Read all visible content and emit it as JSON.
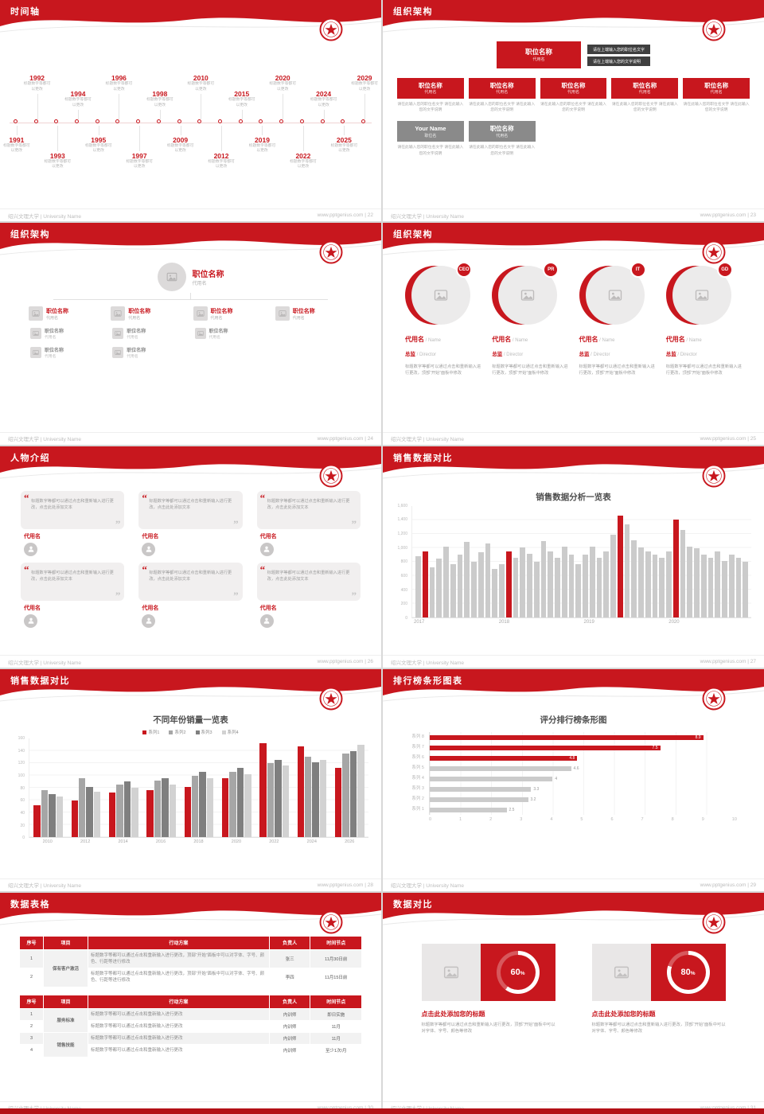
{
  "meta": {
    "university": "绍兴文理大学 | University Name",
    "site": "www.pptgenius.com",
    "sep": " | ",
    "slash": " / ",
    "accent": "#c8171e"
  },
  "slides": {
    "s22": {
      "title": "时间轴",
      "page": "22",
      "cap1": "标题数字等都可",
      "cap2": "以更改",
      "items": [
        {
          "year": "1991",
          "pos": "bottom near"
        },
        {
          "year": "1992",
          "pos": "top far"
        },
        {
          "year": "1993",
          "pos": "bottom far"
        },
        {
          "year": "1994",
          "pos": "top near"
        },
        {
          "year": "1995",
          "pos": "bottom near"
        },
        {
          "year": "1996",
          "pos": "top far"
        },
        {
          "year": "1997",
          "pos": "bottom far"
        },
        {
          "year": "1998",
          "pos": "top near"
        },
        {
          "year": "2009",
          "pos": "bottom near"
        },
        {
          "year": "2010",
          "pos": "top far"
        },
        {
          "year": "2012",
          "pos": "bottom far"
        },
        {
          "year": "2015",
          "pos": "top near"
        },
        {
          "year": "2019",
          "pos": "bottom near"
        },
        {
          "year": "2020",
          "pos": "top far"
        },
        {
          "year": "2022",
          "pos": "bottom far"
        },
        {
          "year": "2024",
          "pos": "top near"
        },
        {
          "year": "2025",
          "pos": "bottom near"
        },
        {
          "year": "2029",
          "pos": "top far"
        }
      ]
    },
    "s23": {
      "title": "组织架构",
      "page": "23",
      "box_title": "职位名称",
      "box_sub": "代用名",
      "note1": "请在上端输入您的职位名文字",
      "note2": "请在上端输入您的文字说明",
      "cell_note": "请在此输入您的职位名文字 请在此输入您的文字说明",
      "mid": [
        {
          "title": "职位名称",
          "sub": "代用名"
        },
        {
          "title": "职位名称",
          "sub": "代用名"
        },
        {
          "title": "职位名称",
          "sub": "代用名"
        },
        {
          "title": "职位名称",
          "sub": "代用名"
        },
        {
          "title": "职位名称",
          "sub": "代用名"
        }
      ],
      "bottom": [
        {
          "title": "Your Name",
          "sub": "职位名"
        },
        {
          "title": "职位名称",
          "sub": "代用名"
        }
      ]
    },
    "s24": {
      "title": "组织架构",
      "page": "24",
      "root": {
        "title": "职位名称",
        "sub": "代用名"
      },
      "branches": [
        {
          "title": "职位名称",
          "sub": "代用名",
          "subs": [
            {
              "title": "职位名称",
              "sub": "代用名"
            },
            {
              "title": "职位名称",
              "sub": "代用名"
            }
          ]
        },
        {
          "title": "职位名称",
          "sub": "代用名",
          "subs": [
            {
              "title": "职位名称",
              "sub": "代用名"
            },
            {
              "title": "职位名称",
              "sub": "代用名"
            }
          ]
        },
        {
          "title": "职位名称",
          "sub": "代用名",
          "subs": [
            {
              "title": "职位名称",
              "sub": "代用名"
            }
          ]
        },
        {
          "title": "职位名称",
          "sub": "代用名",
          "subs": []
        }
      ]
    },
    "s25": {
      "title": "组织架构",
      "page": "25",
      "name": "代用名",
      "name_en": "Name",
      "role": "总监",
      "role_en": "Director",
      "desc": "标题数字等都可以通过点击和重新输入进行更改，顶部“开始”面板中修改",
      "members": [
        {
          "badge": "CEO"
        },
        {
          "badge": "PR"
        },
        {
          "badge": "IT"
        },
        {
          "badge": "GD"
        }
      ]
    },
    "s26": {
      "title": "人物介绍",
      "page": "26",
      "quote": "标题数字等都可以通过点击和重新输入进行更改，点击此处添加文本",
      "cards": [
        {
          "name": "代用名"
        },
        {
          "name": "代用名"
        },
        {
          "name": "代用名"
        },
        {
          "name": "代用名"
        },
        {
          "name": "代用名"
        },
        {
          "name": "代用名"
        }
      ]
    },
    "s27": {
      "title": "销售数据对比",
      "page": "27"
    },
    "s28": {
      "title": "销售数据对比",
      "page": "28"
    },
    "s29": {
      "title": "排行榜条形图表",
      "page": "29"
    },
    "s30": {
      "title": "数据表格",
      "page": "30",
      "headers": [
        "序号",
        "项目",
        "行动方案",
        "负责人",
        "时间节点"
      ],
      "a": [
        {
          "no": "1",
          "item": "保有客户激活",
          "plan": "标题数字等都可以通过点击和重新输入进行更改，顶部“开始”面板中可以对字体、字号、颜色、行距等进行修改",
          "owner": "张三",
          "time": "11月30日前"
        },
        {
          "no": "2",
          "plan": "标题数字等都可以通过点击和重新输入进行更改，顶部“开始”面板中可以对字体、字号、颜色、行距等进行修改",
          "owner": "李四",
          "time": "11月15日前"
        }
      ],
      "b": [
        {
          "no": "1",
          "item": "服务标准",
          "plan": "标题数字等都可以通过点击和重新输入进行更改",
          "owner": "内训师",
          "time": "即日实施"
        },
        {
          "no": "2",
          "plan": "标题数字等都可以通过点击和重新输入进行更改",
          "owner": "内训师",
          "time": "11月"
        },
        {
          "no": "3",
          "item": "销售技能",
          "plan": "标题数字等都可以通过点击和重新输入进行更改",
          "owner": "内训师",
          "time": "11月"
        },
        {
          "no": "4",
          "plan": "标题数字等都可以通过点击和重新输入进行更改",
          "owner": "内训师",
          "time": "至少1次/月"
        }
      ]
    },
    "s31": {
      "title": "数据对比",
      "page": "31",
      "card_title": "点击此处添加您的标题",
      "card_desc": "标题数字等都可以通过点击和重新输入进行更改，顶部“开始”面板中可以对字体、字号、颜色等修改",
      "cards": [
        {
          "pct": 60
        },
        {
          "pct": 80
        }
      ]
    }
  },
  "chart_data": [
    {
      "id": "monthly-sales",
      "type": "bar",
      "title": "销售数据分析一览表",
      "xlabel": "",
      "ylabel": "",
      "categories": [
        "2017",
        "2018",
        "2019",
        "2020"
      ],
      "values": [
        880,
        950,
        720,
        840,
        1010,
        760,
        900,
        1080,
        800,
        940,
        1060,
        700,
        760,
        950,
        860,
        1000,
        910,
        800,
        1090,
        950,
        860,
        1010,
        900,
        760,
        900,
        1010,
        860,
        950,
        1190,
        1460,
        1340,
        1110,
        1000,
        950,
        900,
        860,
        950,
        1400,
        1260,
        1010,
        990,
        900,
        860,
        950,
        810,
        900,
        860,
        800
      ],
      "highlight_indices": [
        1,
        13,
        29,
        37
      ],
      "highlight_color": "#c8171e",
      "bar_color": "#c9c9c9",
      "ylim": [
        0,
        1600
      ],
      "yticks": [
        0,
        200,
        400,
        600,
        800,
        1000,
        1200,
        1400,
        1600
      ],
      "grid": true,
      "legend_position": "none"
    },
    {
      "id": "yearly-sales",
      "type": "bar",
      "title": "不同年份销量一览表",
      "categories": [
        "2010",
        "2012",
        "2014",
        "2016",
        "2018",
        "2020",
        "2022",
        "2024",
        "2026"
      ],
      "series": [
        {
          "name": "系列1",
          "color": "#c8171e",
          "values": [
            52,
            60,
            72,
            76,
            82,
            96,
            152,
            148,
            112
          ]
        },
        {
          "name": "系列2",
          "color": "#a6a6a6",
          "values": [
            76,
            96,
            86,
            92,
            100,
            106,
            120,
            130,
            136
          ]
        },
        {
          "name": "系列3",
          "color": "#7f7f7f",
          "values": [
            70,
            82,
            90,
            96,
            106,
            112,
            126,
            122,
            140
          ]
        },
        {
          "name": "系列4",
          "color": "#d2d2d2",
          "values": [
            66,
            74,
            80,
            86,
            96,
            102,
            116,
            126,
            150
          ]
        }
      ],
      "ylim": [
        0,
        160
      ],
      "yticks": [
        0,
        20,
        40,
        60,
        80,
        100,
        120,
        140,
        160
      ],
      "grid": true,
      "legend_position": "top"
    },
    {
      "id": "ranking",
      "type": "bar",
      "orientation": "horizontal",
      "title": "评分排行榜条形图",
      "categories": [
        "系列 8",
        "系列 7",
        "系列 6",
        "系列 5",
        "系列 4",
        "系列 3",
        "系列 2",
        "系列 1"
      ],
      "values": [
        8.9,
        7.5,
        4.8,
        4.6,
        4,
        3.3,
        3.2,
        2.5
      ],
      "red_count": 3,
      "highlight_color": "#c8171e",
      "bar_color": "#c9c9c9",
      "xlim": [
        0,
        10
      ],
      "xticks": [
        0,
        1,
        2,
        3,
        4,
        5,
        6,
        7,
        8,
        9,
        10
      ],
      "grid": true,
      "legend_position": "none"
    },
    {
      "id": "percent-donuts",
      "type": "pie",
      "values": [
        60,
        80
      ],
      "labels": [
        "60%",
        "80%"
      ]
    }
  ]
}
